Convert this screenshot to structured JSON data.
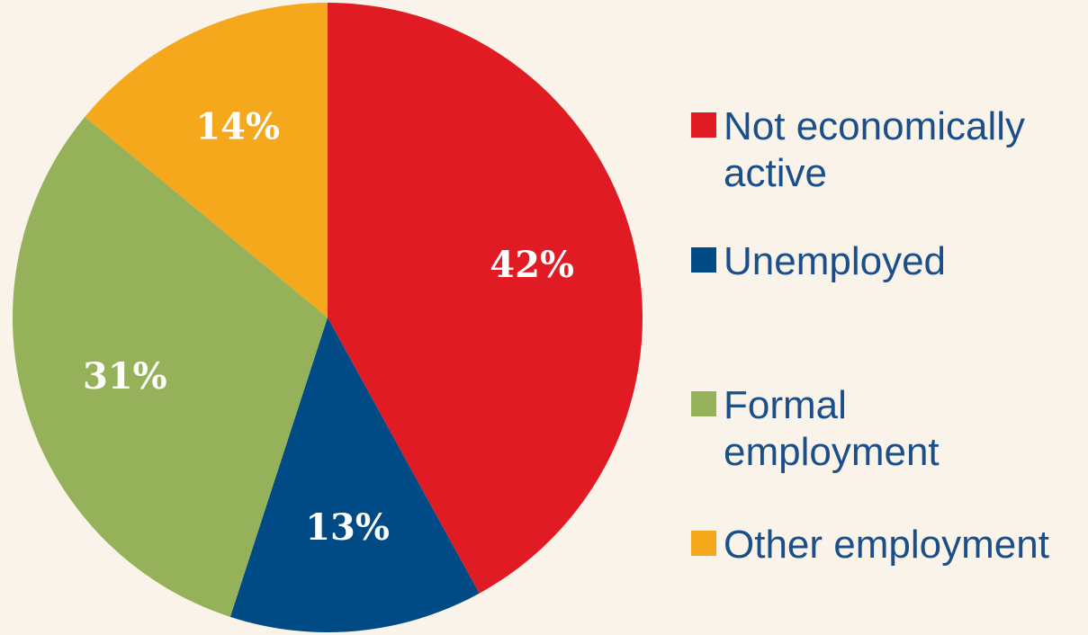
{
  "chart_data": {
    "type": "pie",
    "title": "",
    "slices": [
      {
        "name": "Not economically active",
        "value": 42,
        "label": "42%",
        "color": "#E01B24",
        "legend_lines": [
          "Not economically",
          "active"
        ]
      },
      {
        "name": "Unemployed",
        "value": 13,
        "label": "13%",
        "color": "#004A85",
        "legend_lines": [
          "Unemployed"
        ]
      },
      {
        "name": "Formal employment",
        "value": 31,
        "label": "31%",
        "color": "#95B25A",
        "legend_lines": [
          "Formal",
          "employment"
        ]
      },
      {
        "name": "Other employment",
        "value": 14,
        "label": "14%",
        "color": "#F5A81C",
        "legend_lines": [
          "Other employment"
        ]
      }
    ],
    "start": "12 o'clock",
    "direction": "clockwise",
    "legend_position": "right"
  }
}
